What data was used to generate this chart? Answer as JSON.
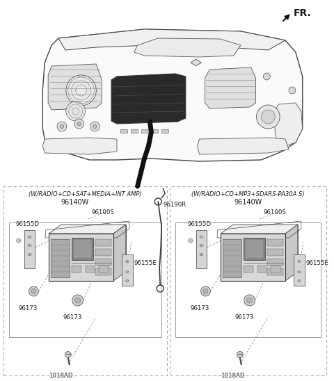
{
  "bg_color": "#ffffff",
  "text_color": "#1a1a1a",
  "fr_label": "FR.",
  "arrow_color": "#111111",
  "left_panel_title": "(W/RADIO+CD+SAT+MEDIA+INT AMP)",
  "left_panel_pn": "96140W",
  "left_panel_extra_pn": "96190R",
  "right_panel_title": "(W/RADIO+CD+MP3+SDARS-PA30A S)",
  "right_panel_pn": "96140W",
  "dash_line_color": "#aaaaaa",
  "part_line_color": "#444444",
  "label_fontsize": 6.2,
  "pn_fontsize": 7.0,
  "title_fontsize": 5.8,
  "panel_title_fontsize": 6.0
}
